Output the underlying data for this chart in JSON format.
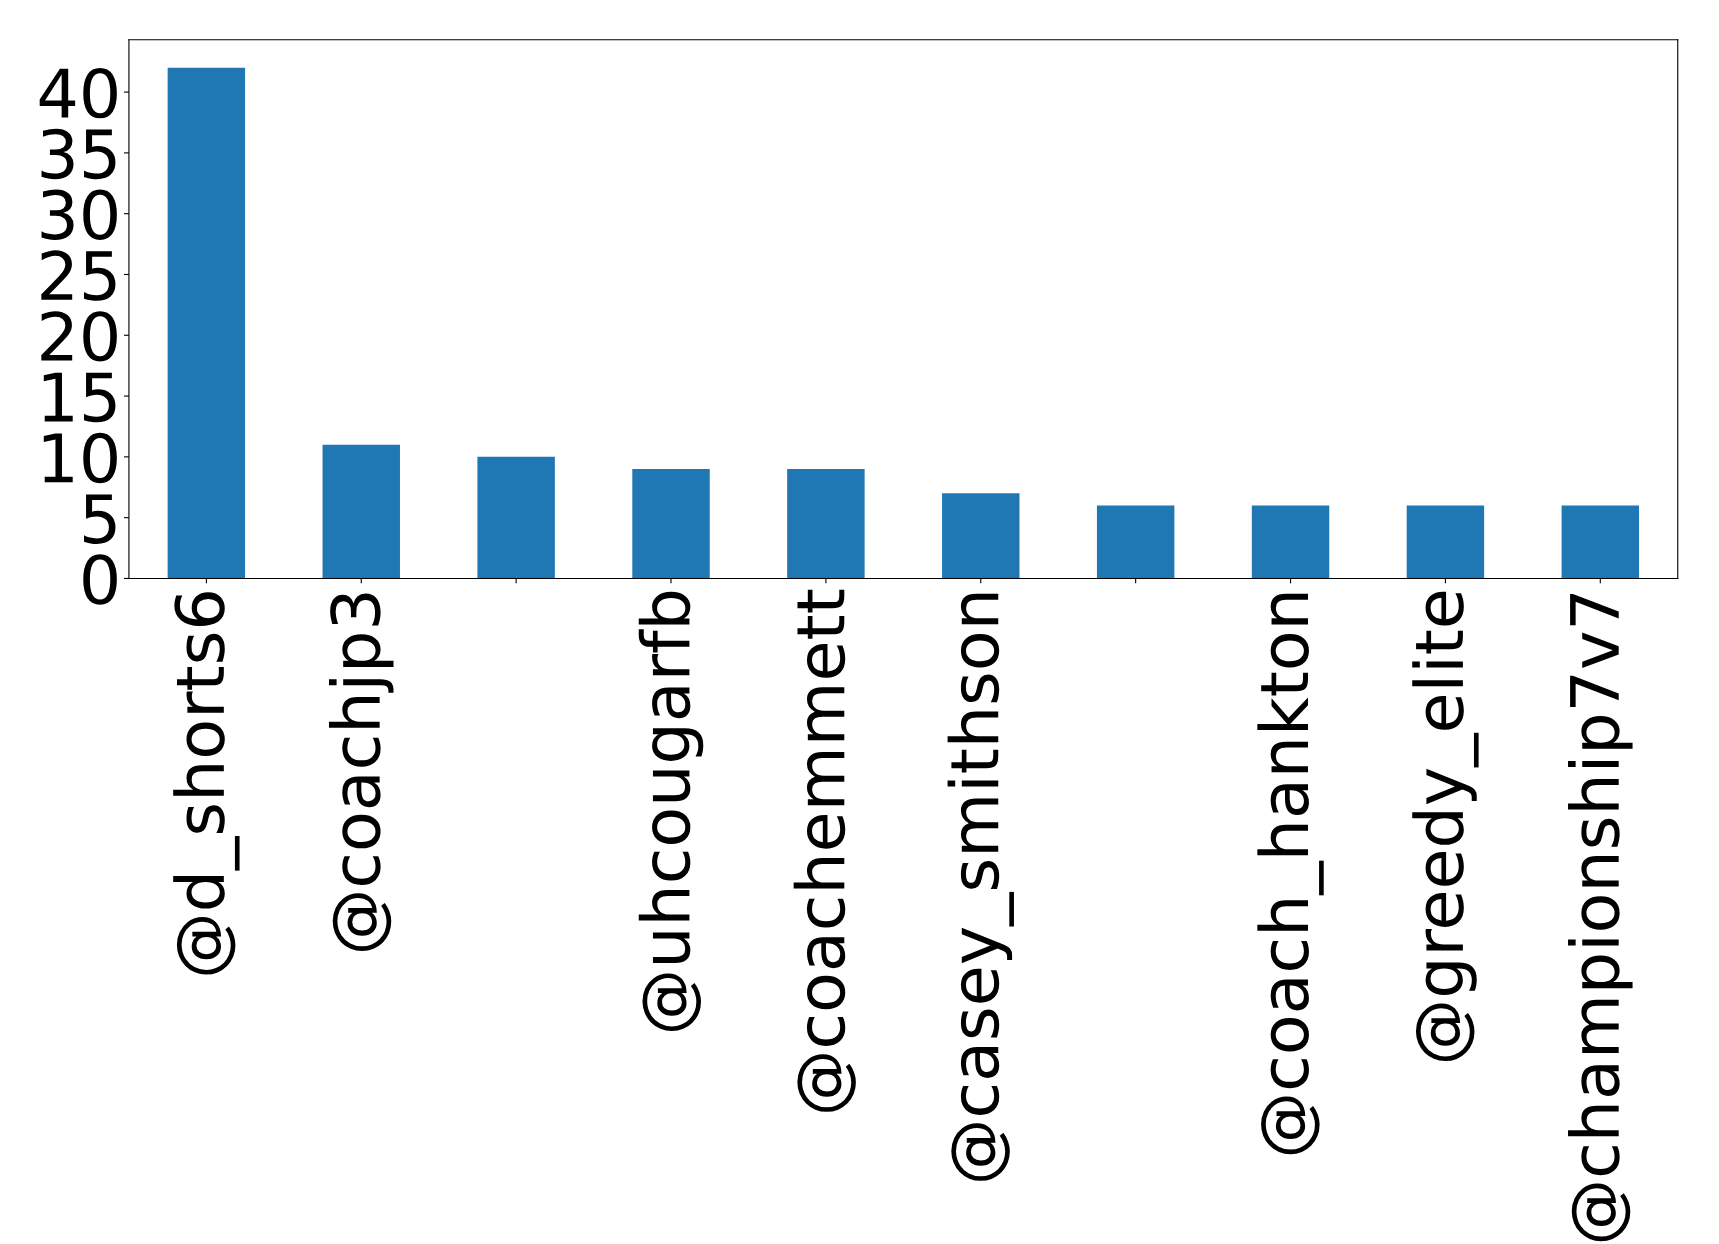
{
  "chart_data": {
    "type": "bar",
    "categories": [
      "@d_shorts6",
      "@coachjp3",
      null,
      "@uhcougarfb",
      "@coachemmett",
      "@casey_smithson",
      null,
      "@coach_hankton",
      "@greedy_elite",
      "@championship7v7"
    ],
    "values": [
      42,
      11,
      10,
      9,
      9,
      7,
      6,
      6,
      6,
      6
    ],
    "color": "#1f77b4",
    "ylim": [
      0,
      44.3
    ],
    "yticks": [
      0,
      5,
      10,
      15,
      20,
      25,
      30,
      35,
      40
    ],
    "grid": false,
    "legend": false
  }
}
